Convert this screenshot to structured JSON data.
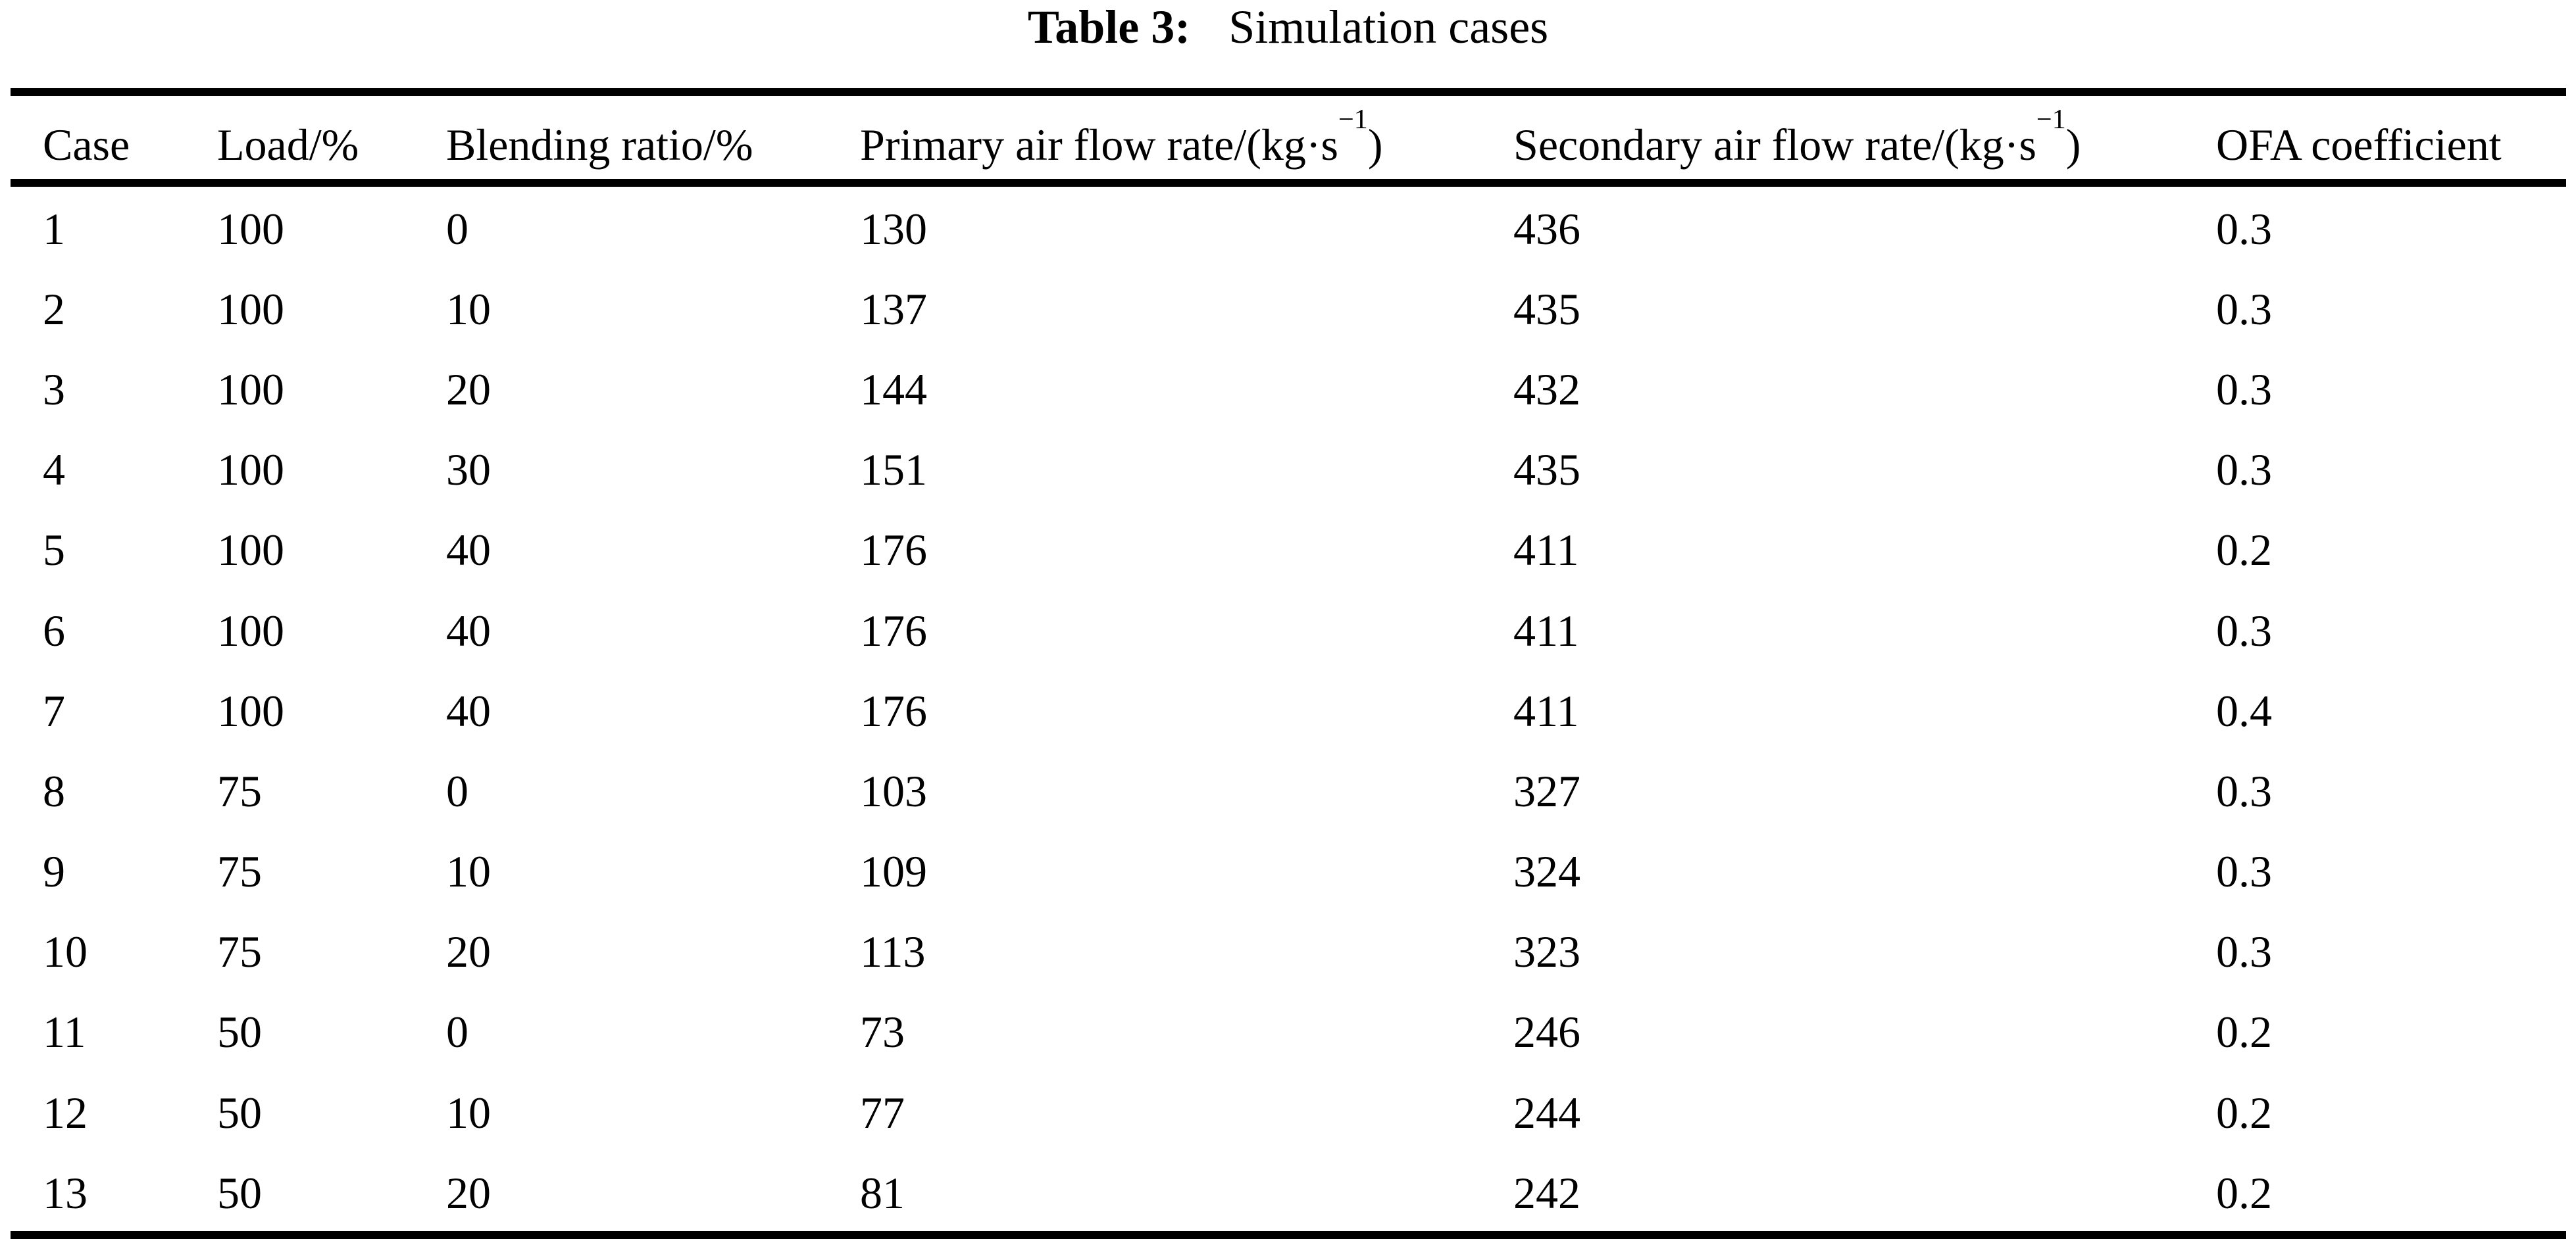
{
  "caption": {
    "label": "Table 3:",
    "text": "Simulation cases"
  },
  "table": {
    "columns": [
      {
        "label": "Case"
      },
      {
        "label": "Load/%"
      },
      {
        "label": "Blending ratio/%"
      },
      {
        "label": "Primary air flow rate/(kg·s",
        "sup": "−1",
        "post": ")"
      },
      {
        "label": "Secondary air flow rate/(kg·s",
        "sup": "−1",
        "post": ")"
      },
      {
        "label": "OFA coefficient"
      }
    ],
    "rows": [
      [
        "1",
        "100",
        "0",
        "130",
        "436",
        "0.3"
      ],
      [
        "2",
        "100",
        "10",
        "137",
        "435",
        "0.3"
      ],
      [
        "3",
        "100",
        "20",
        "144",
        "432",
        "0.3"
      ],
      [
        "4",
        "100",
        "30",
        "151",
        "435",
        "0.3"
      ],
      [
        "5",
        "100",
        "40",
        "176",
        "411",
        "0.2"
      ],
      [
        "6",
        "100",
        "40",
        "176",
        "411",
        "0.3"
      ],
      [
        "7",
        "100",
        "40",
        "176",
        "411",
        "0.4"
      ],
      [
        "8",
        "75",
        "0",
        "103",
        "327",
        "0.3"
      ],
      [
        "9",
        "75",
        "10",
        "109",
        "324",
        "0.3"
      ],
      [
        "10",
        "75",
        "20",
        "113",
        "323",
        "0.3"
      ],
      [
        "11",
        "50",
        "0",
        "73",
        "246",
        "0.2"
      ],
      [
        "12",
        "50",
        "10",
        "77",
        "244",
        "0.2"
      ],
      [
        "13",
        "50",
        "20",
        "81",
        "242",
        "0.2"
      ]
    ],
    "text_color": "#000000",
    "background_color": "#ffffff"
  }
}
